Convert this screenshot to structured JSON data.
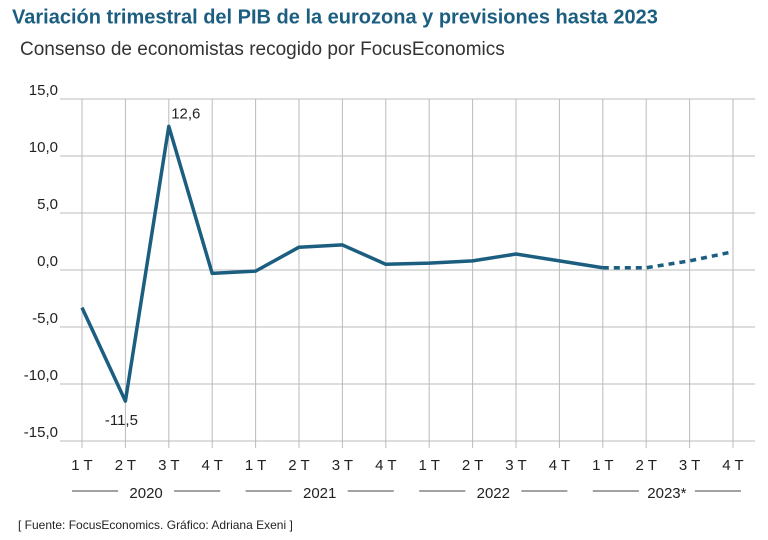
{
  "chart_data": {
    "type": "line",
    "title": "Variación trimestral del PIB de la eurozona y previsiones hasta 2023",
    "subtitle": "Consenso de economistas recogido por FocusEconomics",
    "source": "[ Fuente: FocusEconomics.  Gráfico: Adriana Exeni ]",
    "categories": [
      "1 T",
      "2 T",
      "3 T",
      "4 T",
      "1 T",
      "2 T",
      "3 T",
      "4 T",
      "1 T",
      "2 T",
      "3 T",
      "4 T",
      "1 T",
      "2 T",
      "3 T",
      "4 T"
    ],
    "years": [
      "2020",
      "2021",
      "2022",
      "2023*"
    ],
    "series": [
      {
        "name": "PIB",
        "color": "#1b5e80",
        "values": [
          -3.3,
          -11.5,
          12.6,
          -0.3,
          -0.1,
          2.0,
          2.2,
          0.5,
          0.6,
          0.8,
          1.4,
          0.8,
          0.2,
          0.2,
          0.8,
          1.6
        ],
        "value_labels": [
          null,
          "-11,5",
          "12,6",
          null,
          null,
          null,
          null,
          null,
          null,
          null,
          null,
          null,
          null,
          null,
          null,
          null
        ],
        "dashed_from_index": 12
      }
    ],
    "ylim": [
      -15,
      15
    ],
    "yticks": [
      {
        "value": 15,
        "label": "15,0"
      },
      {
        "value": 10,
        "label": "10,0"
      },
      {
        "value": 5,
        "label": "5,0"
      },
      {
        "value": 0,
        "label": "0,0"
      },
      {
        "value": -5,
        "label": "-5,0"
      },
      {
        "value": -10,
        "label": "-10,0"
      },
      {
        "value": -15,
        "label": "-15,0"
      }
    ],
    "grid": true
  }
}
